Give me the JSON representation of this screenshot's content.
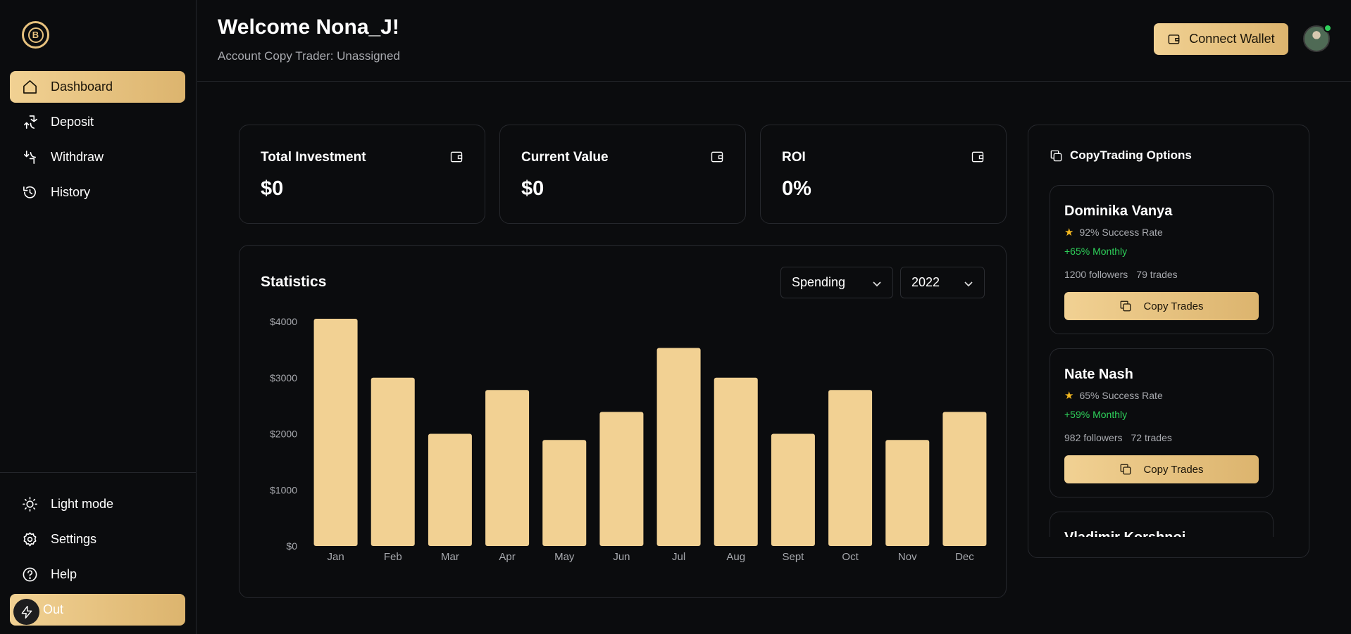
{
  "sidebar": {
    "items": [
      {
        "label": "Dashboard",
        "icon": "home-icon"
      },
      {
        "label": "Deposit",
        "icon": "deposit-icon"
      },
      {
        "label": "Withdraw",
        "icon": "withdraw-icon"
      },
      {
        "label": "History",
        "icon": "history-icon"
      }
    ],
    "bottom_items": [
      {
        "label": "Light mode",
        "icon": "sun-icon"
      },
      {
        "label": "Settings",
        "icon": "gear-icon"
      },
      {
        "label": "Help",
        "icon": "help-icon"
      },
      {
        "label": "Out",
        "icon": "bolt-icon"
      }
    ]
  },
  "header": {
    "welcome": "Welcome Nona_J!",
    "subtitle": "Account Copy Trader: Unassigned",
    "connect_label": "Connect Wallet"
  },
  "stats": [
    {
      "title": "Total Investment",
      "value": "$0"
    },
    {
      "title": "Current Value",
      "value": "$0"
    },
    {
      "title": "ROI",
      "value": "0%"
    }
  ],
  "statistics": {
    "title": "Statistics",
    "type_select": "Spending",
    "year_select": "2022"
  },
  "chart_data": {
    "type": "bar",
    "categories": [
      "Jan",
      "Feb",
      "Mar",
      "Apr",
      "May",
      "Jun",
      "Jul",
      "Aug",
      "Sept",
      "Oct",
      "Nov",
      "Dec"
    ],
    "values": [
      4050,
      3000,
      2000,
      2780,
      1890,
      2390,
      3530,
      3000,
      2000,
      2780,
      1890,
      2390
    ],
    "yticks": [
      "$0",
      "$1000",
      "$2000",
      "$3000",
      "$4000"
    ],
    "ylim": [
      0,
      4000
    ],
    "bar_color": "#f2d193"
  },
  "copytrading": {
    "title": "CopyTrading Options",
    "traders": [
      {
        "name": "Dominika Vanya",
        "rate": "92% Success Rate",
        "monthly": "+65% Monthly",
        "followers": "1200 followers",
        "trades": "79 trades",
        "button": "Copy Trades"
      },
      {
        "name": "Nate Nash",
        "rate": "65% Success Rate",
        "monthly": "+59% Monthly",
        "followers": "982 followers",
        "trades": "72 trades",
        "button": "Copy Trades"
      },
      {
        "name": "Vladimir Korshnoi",
        "rate": "",
        "monthly": "",
        "followers": "",
        "trades": "",
        "button": ""
      }
    ]
  },
  "colors": {
    "accent": "#e8c27e",
    "positive": "#2ed05a",
    "background": "#0b0c0e"
  }
}
